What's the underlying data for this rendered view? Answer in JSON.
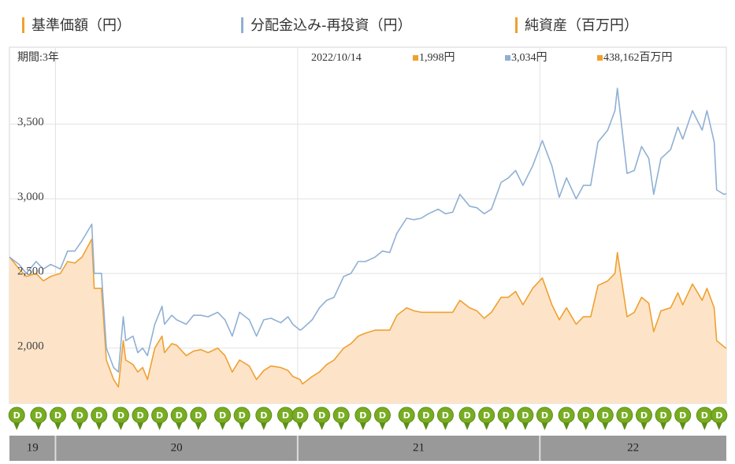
{
  "chart_data": {
    "type": "line",
    "period": "期間:3年",
    "latest_date": "2022/10/14",
    "latest_labels": [
      "1,998円",
      "3,034円",
      "438,162百万円"
    ],
    "x": [
      2019.81,
      2019.85,
      2019.88,
      2019.92,
      2019.95,
      2019.98,
      2020.02,
      2020.05,
      2020.08,
      2020.11,
      2020.15,
      2020.16,
      2020.19,
      2020.21,
      2020.24,
      2020.26,
      2020.28,
      2020.29,
      2020.32,
      2020.34,
      2020.36,
      2020.38,
      2020.41,
      2020.44,
      2020.45,
      2020.48,
      2020.5,
      2020.54,
      2020.57,
      2020.6,
      2020.63,
      2020.67,
      2020.7,
      2020.73,
      2020.76,
      2020.8,
      2020.83,
      2020.86,
      2020.89,
      2020.93,
      2020.96,
      2020.98,
      2021.01,
      2021.02,
      2021.06,
      2021.09,
      2021.12,
      2021.15,
      2021.19,
      2021.22,
      2021.25,
      2021.28,
      2021.32,
      2021.35,
      2021.38,
      2021.41,
      2021.45,
      2021.48,
      2021.51,
      2021.54,
      2021.58,
      2021.61,
      2021.64,
      2021.67,
      2021.71,
      2021.74,
      2021.77,
      2021.8,
      2021.84,
      2021.87,
      2021.9,
      2021.93,
      2021.97,
      2022.01,
      2022.05,
      2022.08,
      2022.11,
      2022.15,
      2022.18,
      2022.21,
      2022.24,
      2022.28,
      2022.31,
      2022.32,
      2022.36,
      2022.39,
      2022.42,
      2022.45,
      2022.47,
      2022.5,
      2022.54,
      2022.57,
      2022.59,
      2022.63,
      2022.67,
      2022.69,
      2022.72,
      2022.73,
      2022.76,
      2022.77
    ],
    "series": [
      {
        "name": "基準価額（円）",
        "color": "#f0a030",
        "fill": "#fde4c9",
        "values": [
          2610,
          2530,
          2480,
          2500,
          2450,
          2480,
          2500,
          2580,
          2570,
          2610,
          2730,
          2400,
          2400,
          1920,
          1790,
          1740,
          2050,
          1920,
          1890,
          1840,
          1870,
          1790,
          2000,
          2080,
          1970,
          2030,
          2020,
          1950,
          1980,
          1990,
          1970,
          2000,
          1950,
          1840,
          1920,
          1880,
          1790,
          1850,
          1880,
          1870,
          1850,
          1810,
          1790,
          1760,
          1810,
          1840,
          1890,
          1920,
          2000,
          2030,
          2080,
          2100,
          2120,
          2120,
          2120,
          2220,
          2270,
          2250,
          2240,
          2240,
          2240,
          2240,
          2240,
          2320,
          2270,
          2250,
          2200,
          2240,
          2340,
          2340,
          2380,
          2290,
          2400,
          2470,
          2290,
          2190,
          2270,
          2160,
          2210,
          2210,
          2420,
          2450,
          2500,
          2640,
          2210,
          2240,
          2340,
          2300,
          2110,
          2250,
          2270,
          2370,
          2290,
          2430,
          2320,
          2400,
          2270,
          2050,
          2010,
          1998
        ]
      },
      {
        "name": "分配金込み-再投資（円）",
        "color": "#8fb0d3",
        "values": [
          2610,
          2560,
          2500,
          2580,
          2530,
          2560,
          2530,
          2650,
          2650,
          2720,
          2830,
          2500,
          2500,
          2000,
          1870,
          1840,
          2210,
          2050,
          2080,
          1970,
          2000,
          1950,
          2160,
          2280,
          2160,
          2220,
          2190,
          2160,
          2220,
          2220,
          2210,
          2240,
          2190,
          2080,
          2240,
          2190,
          2080,
          2190,
          2200,
          2170,
          2210,
          2160,
          2120,
          2130,
          2190,
          2270,
          2320,
          2340,
          2480,
          2500,
          2580,
          2580,
          2610,
          2650,
          2640,
          2770,
          2870,
          2860,
          2870,
          2900,
          2930,
          2900,
          2910,
          3030,
          2950,
          2940,
          2900,
          2930,
          3110,
          3140,
          3190,
          3090,
          3220,
          3390,
          3220,
          3010,
          3140,
          3000,
          3090,
          3090,
          3380,
          3460,
          3590,
          3740,
          3170,
          3190,
          3350,
          3270,
          3030,
          3270,
          3330,
          3480,
          3400,
          3590,
          3460,
          3590,
          3380,
          3060,
          3030,
          3034
        ]
      }
    ],
    "extra_legend": {
      "name": "純資産（百万円）",
      "color": "#f0a030"
    },
    "xlim": [
      2019.81,
      2022.77
    ],
    "ylim": [
      1630,
      4015
    ],
    "yticks": [
      {
        "value": 2000,
        "label": "2,000"
      },
      {
        "value": 2500,
        "label": "2,500"
      },
      {
        "value": 3000,
        "label": "3,000"
      },
      {
        "value": 3500,
        "label": "3,500"
      }
    ],
    "year_labels": [
      {
        "value": 2019,
        "label": "19"
      },
      {
        "value": 2020,
        "label": "20"
      },
      {
        "value": 2021,
        "label": "21"
      },
      {
        "value": 2022,
        "label": "22"
      }
    ],
    "grid": true,
    "distribution_label": "D",
    "distribution_color": "#78ad22",
    "distributions": [
      2019.84,
      2019.93,
      2020.01,
      2020.1,
      2020.18,
      2020.27,
      2020.35,
      2020.43,
      2020.51,
      2020.59,
      2020.69,
      2020.77,
      2020.86,
      2020.95,
      2021.01,
      2021.1,
      2021.18,
      2021.27,
      2021.35,
      2021.45,
      2021.53,
      2021.61,
      2021.7,
      2021.78,
      2021.86,
      2021.94,
      2022.02,
      2022.11,
      2022.19,
      2022.27,
      2022.35,
      2022.43,
      2022.51,
      2022.59,
      2022.68,
      2022.74
    ]
  }
}
